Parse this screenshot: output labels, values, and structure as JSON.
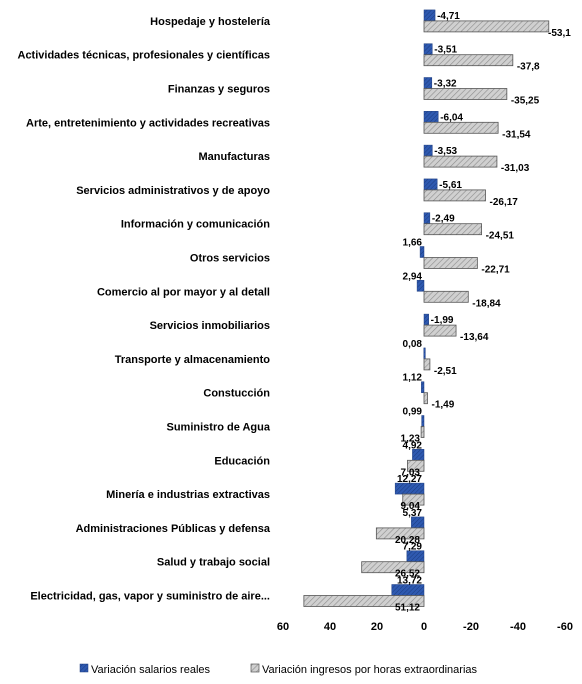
{
  "chart_data": {
    "type": "bar",
    "orientation": "horizontal",
    "categories": [
      "Hospedaje y hostelería",
      "Actividades técnicas, profesionales y científicas",
      "Finanzas y seguros",
      "Arte, entretenimiento y actividades recreativas",
      "Manufacturas",
      "Servicios administrativos y de apoyo",
      "Información y comunicación",
      "Otros servicios",
      "Comercio al por mayor y al detall",
      "Servicios inmobiliarios",
      "Transporte y almacenamiento",
      "Constucción",
      "Suministro de Agua",
      "Educación",
      "Minería e industrias extractivas",
      "Administraciones Públicas y defensa",
      "Salud y trabajo social",
      "Electricidad, gas, vapor y suministro de aire..."
    ],
    "series": [
      {
        "name": "Variación salarios reales",
        "color": "#2e59b0",
        "values": [
          -4.71,
          -3.51,
          -3.32,
          -6.04,
          -3.53,
          -5.61,
          -2.49,
          1.66,
          2.94,
          -1.99,
          0.08,
          1.12,
          0.99,
          4.92,
          12.27,
          5.37,
          7.29,
          13.72
        ],
        "labels": [
          "-4,71",
          "-3,51",
          "-3,32",
          "-6,04",
          "-3,53",
          "-5,61",
          "-2,49",
          "1,66",
          "2,94",
          "-1,99",
          "0,08",
          "1,12",
          "0,99",
          "4,92",
          "12,27",
          "5,37",
          "7,29",
          "13,72"
        ]
      },
      {
        "name": "Variación ingresos por horas extraordinarias",
        "color": "#c4c4c4",
        "values": [
          -53.1,
          -37.8,
          -35.25,
          -31.54,
          -31.03,
          -26.17,
          -24.51,
          -22.71,
          -18.84,
          -13.64,
          -2.51,
          -1.49,
          1.23,
          7.03,
          9.04,
          20.28,
          26.52,
          51.12
        ],
        "labels": [
          "-53,1",
          "-37,8",
          "-35,25",
          "-31,54",
          "-31,03",
          "-26,17",
          "-24,51",
          "-22,71",
          "-18,84",
          "-13,64",
          "-2,51",
          "-1,49",
          "1,23",
          "7,03",
          "9,04",
          "20,28",
          "26,52",
          "51,12"
        ]
      }
    ],
    "x_axis": {
      "reversed": true,
      "range": [
        60,
        -60
      ],
      "ticks": [
        60,
        40,
        20,
        0,
        -20,
        -40,
        -60
      ],
      "tick_labels": [
        "60",
        "40",
        "20",
        "0",
        "-20",
        "-40",
        "-60"
      ]
    },
    "grid": false,
    "legend": "bottom",
    "title": "",
    "xlabel": "",
    "ylabel": ""
  }
}
